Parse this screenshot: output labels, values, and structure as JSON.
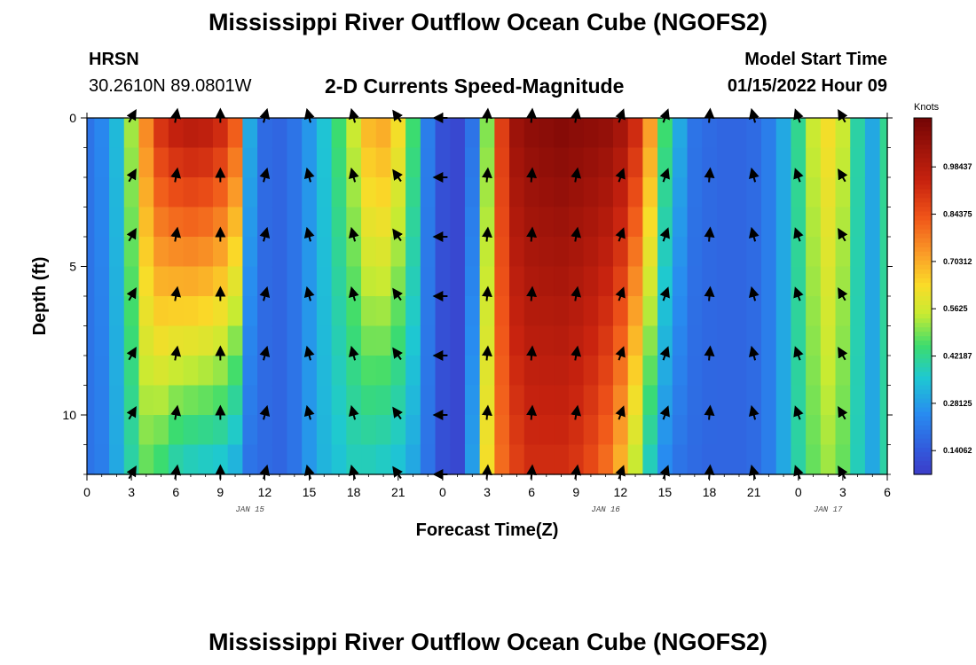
{
  "header": {
    "title": "Mississippi River Outflow Ocean Cube (NGOFS2)",
    "station": "HRSN",
    "coordinates": "30.2610N  89.0801W",
    "subtitle": "2-D Currents Speed-Magnitude",
    "model_start_label": "Model Start Time",
    "model_start_value": "01/15/2022 Hour 09"
  },
  "footer": {
    "title": "Mississippi River Outflow Ocean Cube (NGOFS2)"
  },
  "chart_data": {
    "type": "heatmap",
    "xlabel": "Forecast Time(Z)",
    "ylabel": "Depth (ft)",
    "x_range_hours": [
      0,
      54
    ],
    "y_range_ft": [
      0,
      12
    ],
    "x_tick_labels": [
      "0",
      "3",
      "6",
      "9",
      "12",
      "15",
      "18",
      "21",
      "0",
      "3",
      "6",
      "9",
      "12",
      "15",
      "18",
      "21",
      "0",
      "3",
      "6"
    ],
    "y_tick_labels": [
      "0",
      "5",
      "10"
    ],
    "date_labels": [
      {
        "hour": 11,
        "text": "JAN 15"
      },
      {
        "hour": 35,
        "text": "JAN 16"
      },
      {
        "hour": 50,
        "text": "JAN 17"
      }
    ],
    "colorbar": {
      "unit": "Knots",
      "ticks": [
        "0.14062",
        "0.28125",
        "0.42187",
        "0.5625",
        "0.70312",
        "0.84375",
        "0.98437"
      ],
      "range": [
        0.07,
        1.13
      ]
    },
    "column_hours": [
      0,
      1,
      2,
      3,
      4,
      5,
      6,
      7,
      8,
      9,
      10,
      11,
      12,
      13,
      14,
      15,
      16,
      17,
      18,
      19,
      20,
      21,
      22,
      23,
      24,
      25,
      26,
      27,
      28,
      29,
      30,
      31,
      32,
      33,
      34,
      35,
      36,
      37,
      38,
      39,
      40,
      41,
      42,
      43,
      44,
      45,
      46,
      47,
      48,
      49,
      50,
      51,
      52,
      53,
      54
    ],
    "depth_rows_ft": [
      0.5,
      1.5,
      2.5,
      3.5,
      4.5,
      5.5,
      6.5,
      7.5,
      8.5,
      9.5,
      10.5,
      11.5
    ],
    "speed_knots_surface": [
      0.2,
      0.24,
      0.33,
      0.52,
      0.75,
      0.9,
      0.95,
      0.97,
      0.96,
      0.92,
      0.82,
      0.3,
      0.18,
      0.17,
      0.2,
      0.27,
      0.35,
      0.45,
      0.55,
      0.68,
      0.7,
      0.62,
      0.45,
      0.22,
      0.12,
      0.1,
      0.2,
      0.5,
      0.88,
      1.04,
      1.07,
      1.08,
      1.09,
      1.08,
      1.07,
      1.06,
      1.02,
      0.92,
      0.72,
      0.45,
      0.3,
      0.2,
      0.18,
      0.17,
      0.17,
      0.18,
      0.22,
      0.3,
      0.42,
      0.55,
      0.62,
      0.55,
      0.4,
      0.3,
      0.42
    ],
    "speed_knots_bottom": [
      0.2,
      0.22,
      0.3,
      0.4,
      0.48,
      0.45,
      0.4,
      0.38,
      0.37,
      0.36,
      0.32,
      0.2,
      0.18,
      0.17,
      0.2,
      0.27,
      0.32,
      0.35,
      0.38,
      0.38,
      0.37,
      0.35,
      0.3,
      0.2,
      0.12,
      0.1,
      0.28,
      0.62,
      0.8,
      0.88,
      0.92,
      0.92,
      0.92,
      0.9,
      0.86,
      0.8,
      0.7,
      0.55,
      0.38,
      0.25,
      0.2,
      0.18,
      0.17,
      0.17,
      0.17,
      0.18,
      0.22,
      0.3,
      0.4,
      0.48,
      0.52,
      0.48,
      0.38,
      0.3,
      0.4
    ],
    "vector_hours": [
      3,
      6,
      9,
      12,
      15,
      18,
      21,
      24,
      27,
      30,
      33,
      36,
      39,
      42,
      45,
      48,
      51
    ],
    "vector_depths_ft": [
      0,
      2,
      4,
      6,
      8,
      10,
      12
    ],
    "vector_directions_deg": [
      30,
      10,
      0,
      15,
      345,
      345,
      325,
      270,
      5,
      5,
      10,
      20,
      20,
      5,
      345,
      340,
      330
    ],
    "grid": false,
    "legend_position": "right"
  }
}
